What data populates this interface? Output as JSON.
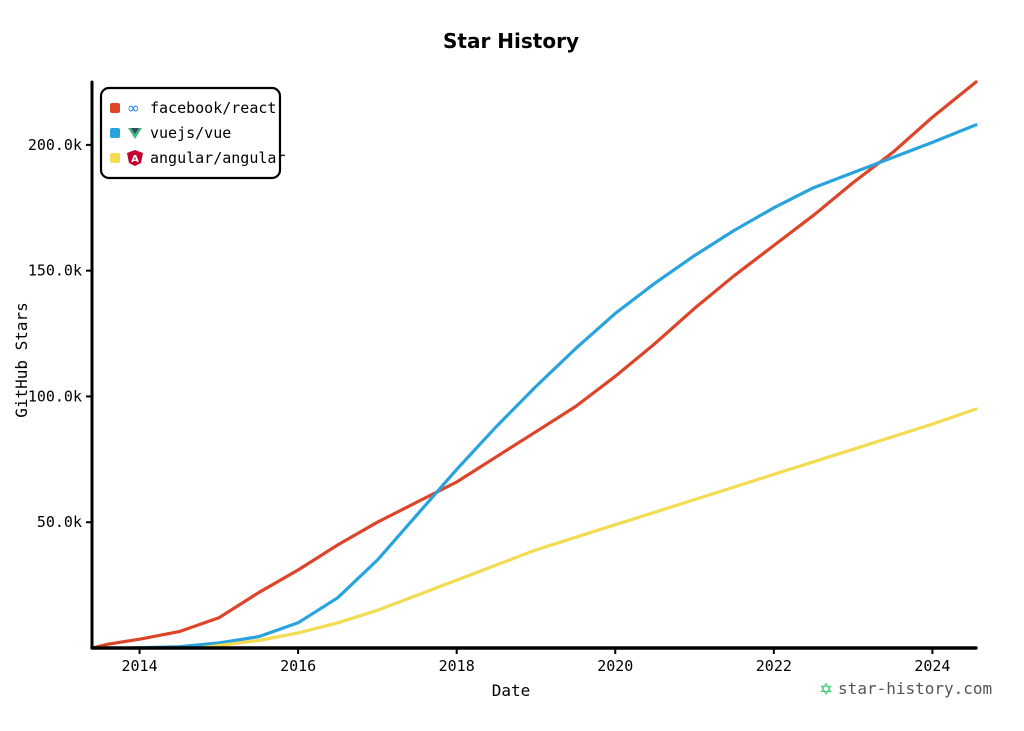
{
  "chart_data": {
    "type": "line",
    "title": "Star History",
    "xlabel": "Date",
    "ylabel": "GitHub Stars",
    "xlim": [
      2013.4,
      2024.55
    ],
    "ylim": [
      0,
      225000
    ],
    "x_ticks": [
      2014,
      2016,
      2018,
      2020,
      2022,
      2024
    ],
    "x_tick_labels": [
      "2014",
      "2016",
      "2018",
      "2020",
      "2022",
      "2024"
    ],
    "y_ticks": [
      50000,
      100000,
      150000,
      200000
    ],
    "y_tick_labels": [
      "50.0k",
      "100.0k",
      "150.0k",
      "200.0k"
    ],
    "legend_position": "top-left",
    "grid": false,
    "series": [
      {
        "name": "facebook/react",
        "color": "#dd4528",
        "icon": "meta-icon",
        "x": [
          2013.4,
          2013.6,
          2014.0,
          2014.5,
          2015.0,
          2015.5,
          2016.0,
          2016.5,
          2017.0,
          2017.5,
          2018.0,
          2018.5,
          2019.0,
          2019.5,
          2020.0,
          2020.5,
          2021.0,
          2021.5,
          2022.0,
          2022.5,
          2023.0,
          2023.5,
          2024.0,
          2024.55
        ],
        "y": [
          0,
          1500,
          3500,
          6500,
          12000,
          22000,
          31000,
          41000,
          50000,
          58000,
          66000,
          76000,
          86000,
          96000,
          108000,
          121000,
          135000,
          148000,
          160000,
          172000,
          185000,
          197000,
          211000,
          225000
        ]
      },
      {
        "name": "vuejs/vue",
        "color": "#28a3dd",
        "icon": "vue-icon",
        "x": [
          2013.9,
          2014.5,
          2015.0,
          2015.5,
          2016.0,
          2016.5,
          2017.0,
          2017.5,
          2018.0,
          2018.5,
          2019.0,
          2019.5,
          2020.0,
          2020.5,
          2021.0,
          2021.5,
          2022.0,
          2022.5,
          2023.0,
          2023.5,
          2024.0,
          2024.55
        ],
        "y": [
          0,
          500,
          2000,
          4500,
          10000,
          20000,
          35000,
          53000,
          71000,
          88000,
          104000,
          119000,
          133000,
          145000,
          156000,
          166000,
          175000,
          183000,
          189000,
          195000,
          201000,
          208000
        ]
      },
      {
        "name": "angular/angular",
        "color": "#f3db52",
        "icon": "angular-icon",
        "x": [
          2014.75,
          2015.0,
          2015.5,
          2016.0,
          2016.5,
          2017.0,
          2017.5,
          2018.0,
          2018.5,
          2019.0,
          2019.5,
          2020.0,
          2020.5,
          2021.0,
          2021.5,
          2022.0,
          2022.5,
          2023.0,
          2023.5,
          2024.0,
          2024.55
        ],
        "y": [
          0,
          1000,
          3000,
          6000,
          10000,
          15000,
          21000,
          27000,
          33000,
          39000,
          44000,
          49000,
          54000,
          59000,
          64000,
          69000,
          74000,
          79000,
          84000,
          89000,
          95000
        ]
      }
    ]
  },
  "watermark": {
    "text": "star-history.com",
    "icon": "star-icon",
    "color": "#22c55e"
  }
}
